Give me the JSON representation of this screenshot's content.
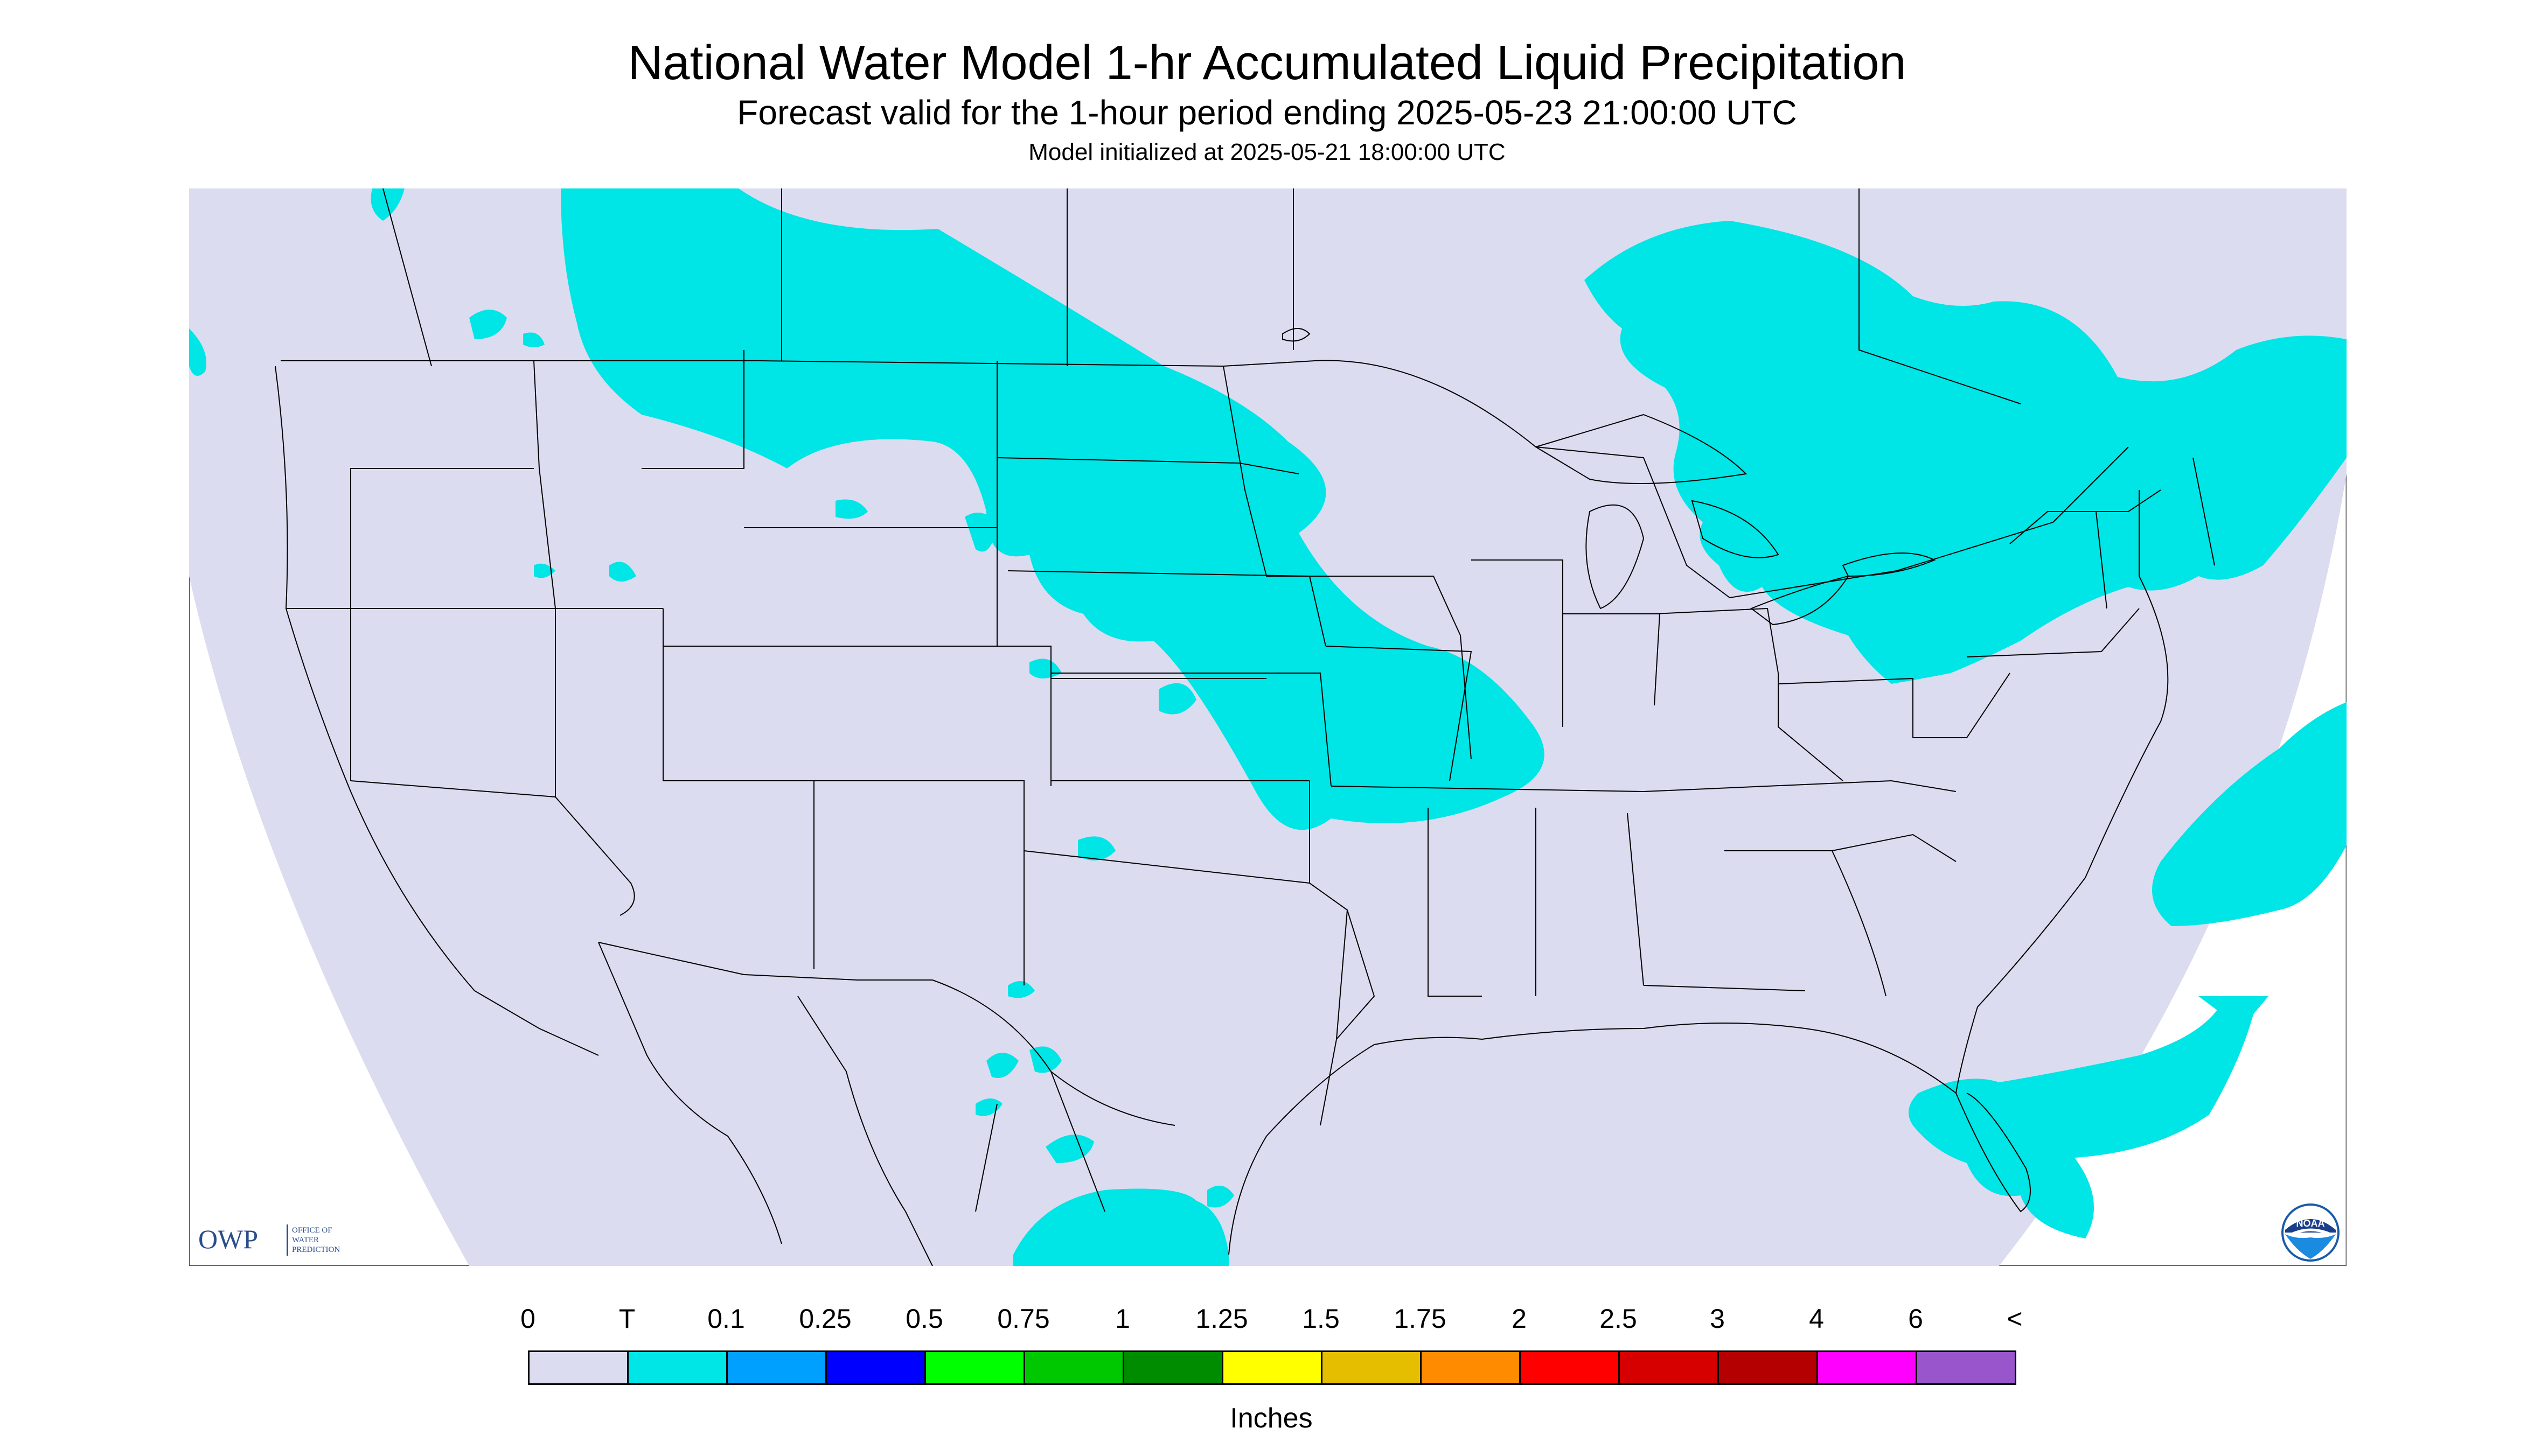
{
  "header": {
    "title": "National Water Model 1-hr Accumulated Liquid Precipitation",
    "subtitle": "Forecast valid for the 1-hour period ending 2025-05-23 21:00:00 UTC",
    "init": "Model initialized at 2025-05-21 18:00:00 UTC"
  },
  "map": {
    "region": "CONUS",
    "background_color": "#dcdcf0",
    "precip_color": "#00e5e5",
    "boundary_color": "#000000"
  },
  "branding": {
    "owp_mark": "OWP",
    "owp_text": [
      "OFFICE OF",
      "WATER",
      "PREDICTION"
    ],
    "noaa_label": "NOAA"
  },
  "legend": {
    "ticks": [
      "0",
      "T",
      "0.1",
      "0.25",
      "0.5",
      "0.75",
      "1",
      "1.25",
      "1.5",
      "1.75",
      "2",
      "2.5",
      "3",
      "4",
      "6",
      "<"
    ],
    "colors": [
      "#dcdcf0",
      "#00e5e5",
      "#00a0ff",
      "#0000ff",
      "#00ff00",
      "#00c800",
      "#008c00",
      "#ffff00",
      "#e6be00",
      "#ff8c00",
      "#ff0000",
      "#d70000",
      "#b40000",
      "#ff00ff",
      "#9955cc"
    ],
    "units": "Inches"
  }
}
